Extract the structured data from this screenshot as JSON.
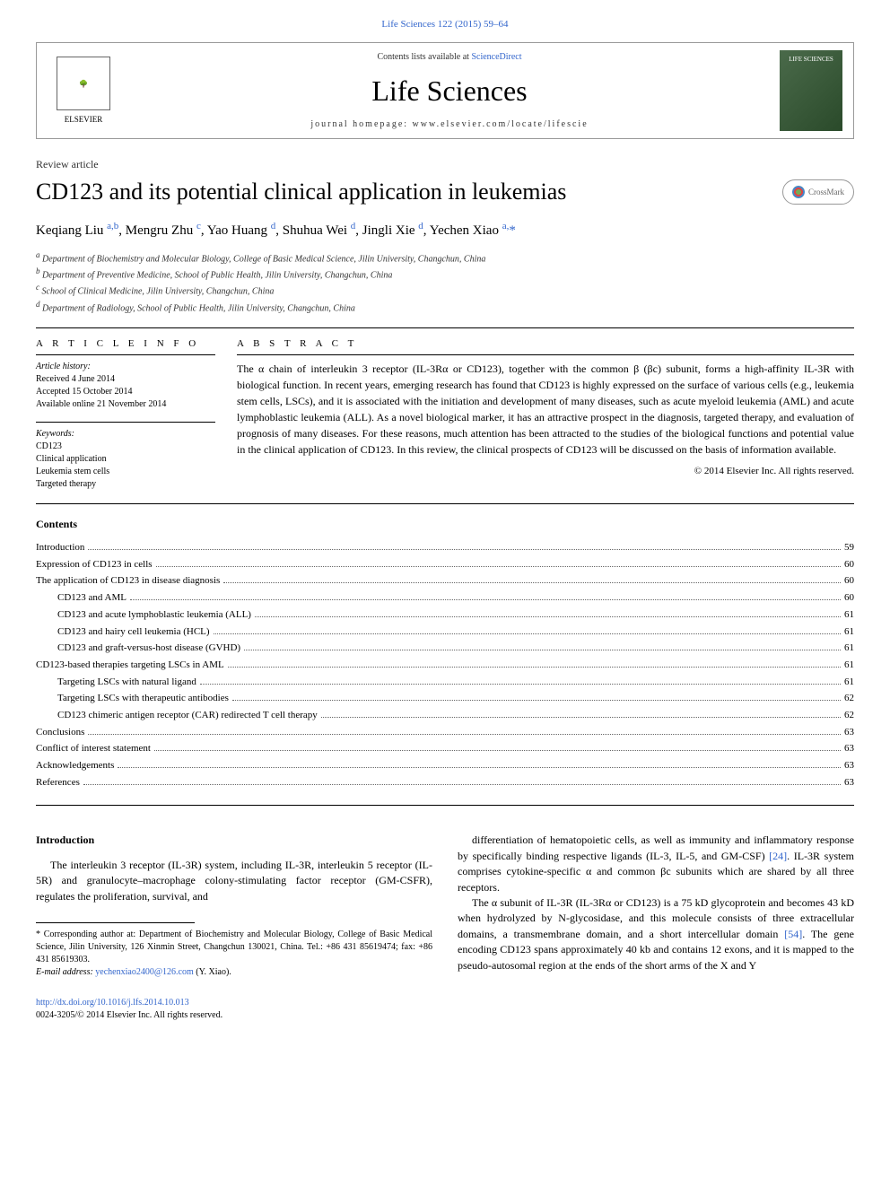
{
  "citation": "Life Sciences 122 (2015) 59–64",
  "header": {
    "contents_available": "Contents lists available at",
    "sciencedirect": "ScienceDirect",
    "journal_name": "Life Sciences",
    "homepage_label": "journal homepage: www.elsevier.com/locate/lifescie",
    "elsevier_label": "ELSEVIER",
    "cover_label": "LIFE SCIENCES"
  },
  "article": {
    "type": "Review article",
    "title": "CD123 and its potential clinical application in leukemias",
    "crossmark": "CrossMark",
    "authors_html": "Keqiang Liu <sup class='author-sup'>a,b</sup>, Mengru Zhu <sup class='author-sup'>c</sup>, Yao Huang <sup class='author-sup'>d</sup>, Shuhua Wei <sup class='author-sup'>d</sup>, Jingli Xie <sup class='author-sup'>d</sup>, Yechen Xiao <sup class='author-sup'>a,</sup><span class='corresponding'>*</span>",
    "affiliations": [
      {
        "sup": "a",
        "text": "Department of Biochemistry and Molecular Biology, College of Basic Medical Science, Jilin University, Changchun, China"
      },
      {
        "sup": "b",
        "text": "Department of Preventive Medicine, School of Public Health, Jilin University, Changchun, China"
      },
      {
        "sup": "c",
        "text": "School of Clinical Medicine, Jilin University, Changchun, China"
      },
      {
        "sup": "d",
        "text": "Department of Radiology, School of Public Health, Jilin University, Changchun, China"
      }
    ]
  },
  "info": {
    "heading": "A R T I C L E   I N F O",
    "history_label": "Article history:",
    "history": [
      "Received 4 June 2014",
      "Accepted 15 October 2014",
      "Available online 21 November 2014"
    ],
    "keywords_label": "Keywords:",
    "keywords": [
      "CD123",
      "Clinical application",
      "Leukemia stem cells",
      "Targeted therapy"
    ]
  },
  "abstract": {
    "heading": "A B S T R A C T",
    "text": "The α chain of interleukin 3 receptor (IL-3Rα or CD123), together with the common β (βc) subunit, forms a high-affinity IL-3R with biological function. In recent years, emerging research has found that CD123 is highly expressed on the surface of various cells (e.g., leukemia stem cells, LSCs), and it is associated with the initiation and development of many diseases, such as acute myeloid leukemia (AML) and acute lymphoblastic leukemia (ALL). As a novel biological marker, it has an attractive prospect in the diagnosis, targeted therapy, and evaluation of prognosis of many diseases. For these reasons, much attention has been attracted to the studies of the biological functions and potential value in the clinical application of CD123. In this review, the clinical prospects of CD123 will be discussed on the basis of information available.",
    "copyright": "© 2014 Elsevier Inc. All rights reserved."
  },
  "contents": {
    "heading": "Contents",
    "items": [
      {
        "indent": 0,
        "label": "Introduction",
        "page": "59"
      },
      {
        "indent": 0,
        "label": "Expression of CD123 in cells",
        "page": "60"
      },
      {
        "indent": 0,
        "label": "The application of CD123 in disease diagnosis",
        "page": "60"
      },
      {
        "indent": 1,
        "label": "CD123 and AML",
        "page": "60"
      },
      {
        "indent": 1,
        "label": "CD123 and acute lymphoblastic leukemia (ALL)",
        "page": "61"
      },
      {
        "indent": 1,
        "label": "CD123 and hairy cell leukemia (HCL)",
        "page": "61"
      },
      {
        "indent": 1,
        "label": "CD123 and graft-versus-host disease (GVHD)",
        "page": "61"
      },
      {
        "indent": 0,
        "label": "CD123-based therapies targeting LSCs in AML",
        "page": "61"
      },
      {
        "indent": 1,
        "label": "Targeting LSCs with natural ligand",
        "page": "61"
      },
      {
        "indent": 1,
        "label": "Targeting LSCs with therapeutic antibodies",
        "page": "62"
      },
      {
        "indent": 1,
        "label": "CD123 chimeric antigen receptor (CAR) redirected T cell therapy",
        "page": "62"
      },
      {
        "indent": 0,
        "label": "Conclusions",
        "page": "63"
      },
      {
        "indent": 0,
        "label": "Conflict of interest statement",
        "page": "63"
      },
      {
        "indent": 0,
        "label": "Acknowledgements",
        "page": "63"
      },
      {
        "indent": 0,
        "label": "References",
        "page": "63"
      }
    ]
  },
  "body": {
    "intro_heading": "Introduction",
    "left_p1": "The interleukin 3 receptor (IL-3R) system, including IL-3R, interleukin 5 receptor (IL-5R) and granulocyte–macrophage colony-stimulating factor receptor (GM-CSFR), regulates the proliferation, survival, and",
    "right_p1_a": "differentiation of hematopoietic cells, as well as immunity and inflammatory response by specifically binding respective ligands (IL-3, IL-5, and GM-CSF) ",
    "right_ref1": "[24]",
    "right_p1_b": ". IL-3R system comprises cytokine-specific α and common βc subunits which are shared by all three receptors.",
    "right_p2_a": "The α subunit of IL-3R (IL-3Rα or CD123) is a 75 kD glycoprotein and becomes 43 kD when hydrolyzed by N-glycosidase, and this molecule consists of three extracellular domains, a transmembrane domain, and a short intercellular domain ",
    "right_ref2": "[54]",
    "right_p2_b": ". The gene encoding CD123 spans approximately 40 kb and contains 12 exons, and it is mapped to the pseudo-autosomal region at the ends of the short arms of the X and Y"
  },
  "footnote": {
    "corr": "* Corresponding author at: Department of Biochemistry and Molecular Biology, College of Basic Medical Science, Jilin University, 126 Xinmin Street, Changchun 130021, China. Tel.: +86 431 85619474; fax: +86 431 85619303.",
    "email_label": "E-mail address:",
    "email": "yechenxiao2400@126.com",
    "email_suffix": "(Y. Xiao)."
  },
  "footer": {
    "doi": "http://dx.doi.org/10.1016/j.lfs.2014.10.013",
    "copyright": "0024-3205/© 2014 Elsevier Inc. All rights reserved."
  },
  "colors": {
    "link": "#3366cc",
    "text": "#000000",
    "muted": "#333333",
    "border": "#999999"
  }
}
